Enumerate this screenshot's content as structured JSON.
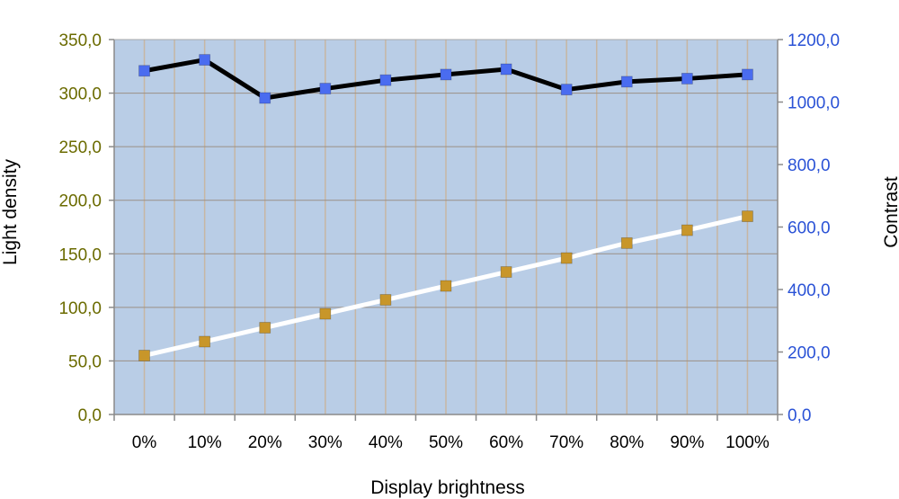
{
  "chart_data": {
    "type": "line",
    "title": "",
    "xlabel": "Display brightness",
    "ylabel_left": "Light density",
    "ylabel_right": "Contrast",
    "categories": [
      "0%",
      "10%",
      "20%",
      "30%",
      "40%",
      "50%",
      "60%",
      "70%",
      "80%",
      "90%",
      "100%"
    ],
    "y_left": {
      "min": 0,
      "max": 350,
      "step": 50,
      "ticks": [
        "0,0",
        "50,0",
        "100,0",
        "150,0",
        "200,0",
        "250,0",
        "300,0",
        "350,0"
      ]
    },
    "y_right": {
      "min": 0,
      "max": 1200,
      "step": 200,
      "ticks": [
        "0,0",
        "200,0",
        "400,0",
        "600,0",
        "800,0",
        "1000,0",
        "1200,0"
      ]
    },
    "grid": true,
    "series": [
      {
        "axis": "left",
        "values": [
          55,
          68,
          81,
          94,
          107,
          120,
          133,
          146,
          160,
          172,
          185
        ],
        "line_color": "#ffffff",
        "marker_color": "#c8962a"
      },
      {
        "axis": "right",
        "values": [
          1100,
          1135,
          1013,
          1043,
          1070,
          1088,
          1105,
          1040,
          1065,
          1075,
          1088
        ],
        "line_color": "#000000",
        "marker_color": "#4a6cf0"
      }
    ],
    "colors": {
      "plot_background": "#b9cde6",
      "grid": "#c7b6a3",
      "left_axis_text": "#6b6b00",
      "right_axis_text": "#2a52d6"
    }
  }
}
